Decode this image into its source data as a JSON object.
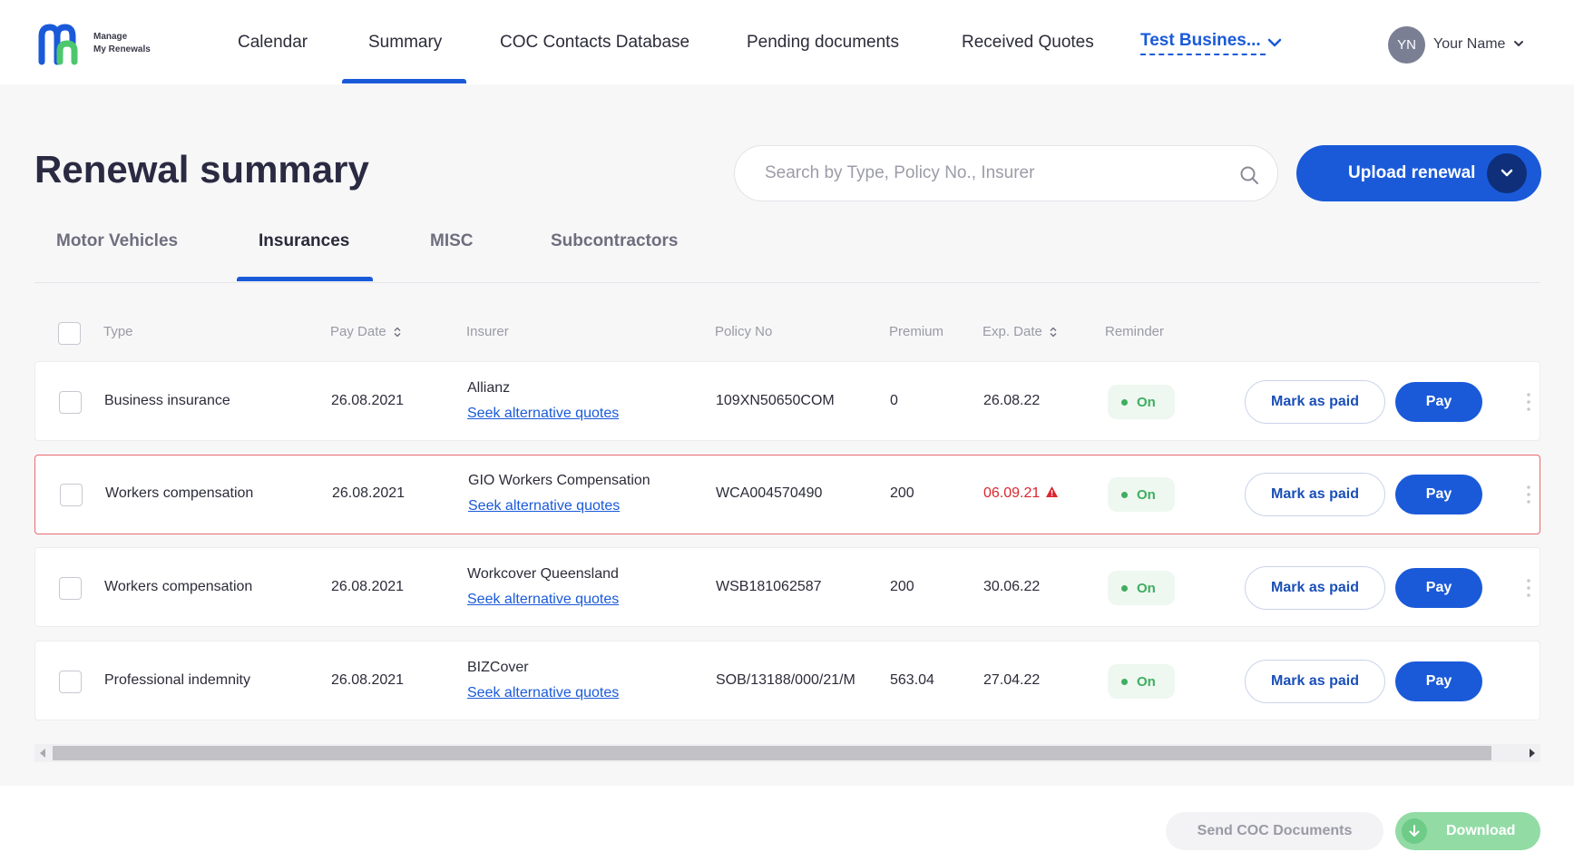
{
  "app": {
    "logo_line1": "Manage",
    "logo_line2": "My Renewals"
  },
  "nav": {
    "items": [
      {
        "label": "Calendar"
      },
      {
        "label": "Summary",
        "active": true
      },
      {
        "label": "COC Contacts Database"
      },
      {
        "label": "Pending documents"
      },
      {
        "label": "Received Quotes"
      }
    ],
    "business": "Test Busines...",
    "user": {
      "initials": "YN",
      "name": "Your Name"
    }
  },
  "page": {
    "title": "Renewal summary",
    "search_placeholder": "Search by Type, Policy No., Insurer",
    "search_value": "",
    "upload_label": "Upload renewal"
  },
  "tabs": [
    {
      "label": "Motor Vehicles"
    },
    {
      "label": "Insurances",
      "active": true
    },
    {
      "label": "MISC"
    },
    {
      "label": "Subcontractors"
    }
  ],
  "table": {
    "columns": {
      "type": "Type",
      "pay_date": "Pay Date",
      "insurer": "Insurer",
      "policy_no": "Policy No",
      "premium": "Premium",
      "exp_date": "Exp. Date",
      "reminder": "Reminder"
    },
    "rows": [
      {
        "type": "Business insurance",
        "pay_date": "26.08.2021",
        "insurer": "Allianz",
        "seek": "Seek alternative quotes",
        "policy_no": "109XN50650COM",
        "premium": "0",
        "exp_date": "26.08.22",
        "expired": false,
        "reminder": "On",
        "mark_paid": "Mark as paid",
        "pay": "Pay"
      },
      {
        "type": "Workers compensation",
        "pay_date": "26.08.2021",
        "insurer": "GIO Workers Compensation",
        "seek": "Seek alternative quotes",
        "policy_no": "WCA004570490",
        "premium": "200",
        "exp_date": "06.09.21",
        "expired": true,
        "reminder": "On",
        "mark_paid": "Mark as paid",
        "pay": "Pay"
      },
      {
        "type": "Workers compensation",
        "pay_date": "26.08.2021",
        "insurer": "Workcover Queensland",
        "seek": "Seek alternative quotes",
        "policy_no": "WSB181062587",
        "premium": "200",
        "exp_date": "30.06.22",
        "expired": false,
        "reminder": "On",
        "mark_paid": "Mark as paid",
        "pay": "Pay"
      },
      {
        "type": "Professional indemnity",
        "pay_date": "26.08.2021",
        "insurer": "BIZCover",
        "seek": "Seek alternative quotes",
        "policy_no": "SOB/13188/000/21/M",
        "premium": "563.04",
        "exp_date": "27.04.22",
        "expired": false,
        "reminder": "On",
        "mark_paid": "Mark as paid",
        "pay": "Pay"
      }
    ]
  },
  "footer": {
    "send_label": "Send COC Documents",
    "download_label": "Download"
  },
  "colors": {
    "primary": "#1a5ad9",
    "danger": "#d9262e",
    "success": "#3fae60"
  }
}
